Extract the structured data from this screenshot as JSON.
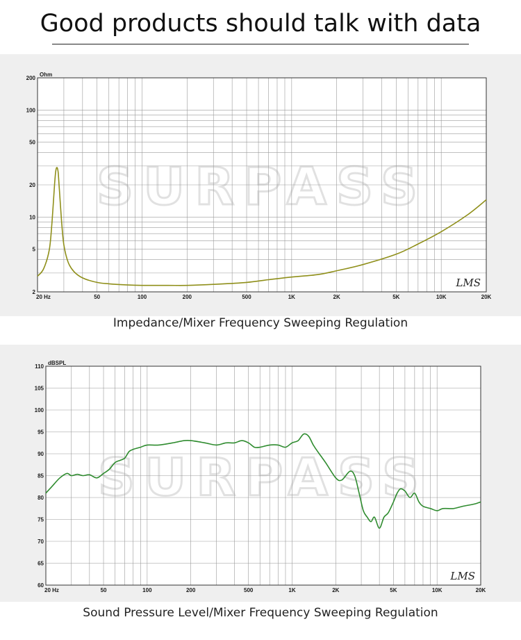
{
  "headline": "Good products should talk with data",
  "captions": [
    "Impedance/Mixer Frequency Sweeping Regulation",
    "Sound Pressure Level/Mixer Frequency Sweeping Regulation"
  ],
  "watermark": "SURPASS",
  "colors": {
    "impedance_curve": "#8f8f1a",
    "spl_curve": "#2e8b2e",
    "grid": "#9a9a9a",
    "axis_labels": "#1a1a1a"
  },
  "chart_data": [
    {
      "type": "line",
      "title": "",
      "xlabel": "",
      "ylabel": "",
      "x_scale": "log",
      "y_scale": "log",
      "xlim": [
        20,
        20000
      ],
      "ylim": [
        2,
        200
      ],
      "y_unit_label": "Ohm",
      "x_ticks": [
        {
          "value": 20,
          "label": "20  Hz"
        },
        {
          "value": 50,
          "label": "50"
        },
        {
          "value": 100,
          "label": "100"
        },
        {
          "value": 200,
          "label": "200"
        },
        {
          "value": 500,
          "label": "500"
        },
        {
          "value": 1000,
          "label": "1K"
        },
        {
          "value": 2000,
          "label": "2K"
        },
        {
          "value": 5000,
          "label": "5K"
        },
        {
          "value": 10000,
          "label": "10K"
        },
        {
          "value": 20000,
          "label": "20K"
        }
      ],
      "y_ticks": [
        {
          "value": 2,
          "label": "2"
        },
        {
          "value": 5,
          "label": "5"
        },
        {
          "value": 10,
          "label": "10"
        },
        {
          "value": 20,
          "label": "20"
        },
        {
          "value": 50,
          "label": "50"
        },
        {
          "value": 100,
          "label": "100"
        },
        {
          "value": 200,
          "label": "200"
        }
      ],
      "grid": true,
      "logo": "LMS",
      "series": [
        {
          "x": [
            20,
            22,
            24,
            25,
            26,
            26.5,
            27,
            27.5,
            28,
            29,
            30,
            32,
            35,
            40,
            50,
            60,
            80,
            100,
            150,
            200,
            300,
            500,
            700,
            1000,
            1500,
            2000,
            3000,
            5000,
            7000,
            10000,
            15000,
            20000
          ],
          "y": [
            2.8,
            3.3,
            5.0,
            9.0,
            20.0,
            27.0,
            29.0,
            26.0,
            18.0,
            9.0,
            5.5,
            3.8,
            3.1,
            2.7,
            2.45,
            2.38,
            2.32,
            2.3,
            2.3,
            2.3,
            2.35,
            2.45,
            2.6,
            2.75,
            2.9,
            3.15,
            3.6,
            4.5,
            5.6,
            7.3,
            10.5,
            14.5
          ]
        }
      ]
    },
    {
      "type": "line",
      "title": "",
      "xlabel": "",
      "ylabel": "",
      "x_scale": "log",
      "xlim": [
        20,
        20000
      ],
      "ylim": [
        60,
        110
      ],
      "y_unit_label": "dBSPL",
      "x_ticks": [
        {
          "value": 20,
          "label": "20  Hz"
        },
        {
          "value": 50,
          "label": "50"
        },
        {
          "value": 100,
          "label": "100"
        },
        {
          "value": 200,
          "label": "200"
        },
        {
          "value": 500,
          "label": "500"
        },
        {
          "value": 1000,
          "label": "1K"
        },
        {
          "value": 2000,
          "label": "2K"
        },
        {
          "value": 5000,
          "label": "5K"
        },
        {
          "value": 10000,
          "label": "10K"
        },
        {
          "value": 20000,
          "label": "20K"
        }
      ],
      "y_ticks": [
        {
          "value": 60,
          "label": "60"
        },
        {
          "value": 65,
          "label": "65"
        },
        {
          "value": 70,
          "label": "70"
        },
        {
          "value": 75,
          "label": "75"
        },
        {
          "value": 80,
          "label": "80"
        },
        {
          "value": 85,
          "label": "85"
        },
        {
          "value": 90,
          "label": "90"
        },
        {
          "value": 95,
          "label": "95"
        },
        {
          "value": 100,
          "label": "100"
        },
        {
          "value": 105,
          "label": "105"
        },
        {
          "value": 110,
          "label": "110"
        }
      ],
      "grid": true,
      "logo": "LMS",
      "series": [
        {
          "x": [
            20,
            22,
            25,
            28,
            30,
            33,
            36,
            40,
            45,
            50,
            55,
            60,
            65,
            70,
            75,
            80,
            90,
            100,
            120,
            150,
            180,
            200,
            250,
            300,
            350,
            400,
            450,
            500,
            550,
            600,
            700,
            800,
            900,
            1000,
            1100,
            1200,
            1300,
            1400,
            1500,
            1700,
            2000,
            2200,
            2500,
            2700,
            2900,
            3100,
            3300,
            3500,
            3700,
            4000,
            4300,
            4600,
            5000,
            5300,
            5600,
            6000,
            6500,
            7000,
            7500,
            8000,
            9000,
            10000,
            11000,
            13000,
            15000,
            18000,
            20000
          ],
          "y": [
            81.0,
            82.5,
            84.5,
            85.5,
            85.0,
            85.3,
            85.0,
            85.2,
            84.5,
            85.5,
            86.5,
            88.0,
            88.5,
            89.0,
            90.5,
            91.0,
            91.5,
            92.0,
            92.0,
            92.5,
            93.0,
            93.0,
            92.5,
            92.0,
            92.5,
            92.5,
            93.0,
            92.5,
            91.5,
            91.5,
            92.0,
            92.0,
            91.5,
            92.5,
            93.0,
            94.5,
            94.0,
            92.0,
            90.5,
            88.0,
            84.5,
            84.0,
            86.0,
            85.0,
            81.0,
            77.0,
            75.5,
            74.5,
            75.5,
            73.0,
            75.5,
            76.5,
            79.0,
            81.0,
            82.0,
            81.5,
            80.0,
            81.0,
            79.0,
            78.0,
            77.5,
            77.0,
            77.5,
            77.5,
            78.0,
            78.5,
            79.0
          ]
        }
      ]
    }
  ]
}
